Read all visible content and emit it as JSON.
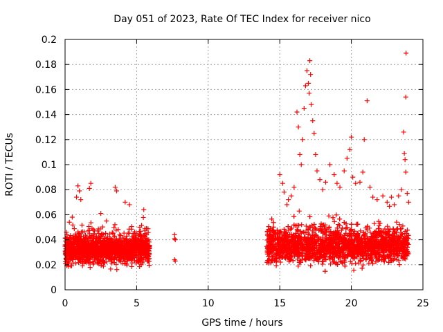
{
  "chart_data": {
    "type": "scatter",
    "title": "Day 051 of 2023, Rate Of TEC Index for receiver nico",
    "xlabel": "GPS time / hours",
    "ylabel": "ROTI / TECUs",
    "xlim": [
      0,
      25
    ],
    "ylim": [
      0,
      0.2
    ],
    "xticks": [
      0,
      5,
      10,
      15,
      20,
      25
    ],
    "yticks": [
      0,
      0.02,
      0.04,
      0.06,
      0.08,
      0.1,
      0.12,
      0.14,
      0.16,
      0.18,
      0.2
    ],
    "grid": true,
    "marker": "+",
    "series_color": "#ff0000",
    "segments": [
      {
        "x_start": 0.0,
        "x_end": 5.9,
        "baseline": 0.032,
        "spread": 0.018,
        "min": 0.008,
        "max": 0.066
      },
      {
        "x_start": 14.1,
        "x_end": 24.0,
        "baseline": 0.035,
        "spread": 0.022,
        "min": 0.006,
        "max": 0.07
      }
    ],
    "points": [
      [
        0.3,
        0.054
      ],
      [
        0.5,
        0.058
      ],
      [
        0.8,
        0.074
      ],
      [
        0.9,
        0.083
      ],
      [
        1.0,
        0.079
      ],
      [
        1.1,
        0.072
      ],
      [
        1.7,
        0.081
      ],
      [
        1.8,
        0.085
      ],
      [
        3.5,
        0.082
      ],
      [
        3.6,
        0.079
      ],
      [
        4.5,
        0.068
      ],
      [
        4.2,
        0.07
      ],
      [
        5.5,
        0.064
      ],
      [
        2.5,
        0.061
      ],
      [
        7.65,
        0.044
      ],
      [
        7.65,
        0.041
      ],
      [
        7.7,
        0.04
      ],
      [
        7.65,
        0.024
      ],
      [
        7.7,
        0.023
      ],
      [
        15.0,
        0.092
      ],
      [
        15.2,
        0.085
      ],
      [
        15.3,
        0.078
      ],
      [
        15.5,
        0.068
      ],
      [
        15.6,
        0.072
      ],
      [
        15.8,
        0.075
      ],
      [
        16.0,
        0.082
      ],
      [
        16.2,
        0.142
      ],
      [
        16.3,
        0.13
      ],
      [
        16.4,
        0.108
      ],
      [
        16.5,
        0.1
      ],
      [
        16.6,
        0.12
      ],
      [
        16.7,
        0.145
      ],
      [
        16.8,
        0.163
      ],
      [
        16.9,
        0.175
      ],
      [
        17.0,
        0.165
      ],
      [
        17.05,
        0.157
      ],
      [
        17.1,
        0.183
      ],
      [
        17.15,
        0.172
      ],
      [
        17.2,
        0.148
      ],
      [
        17.3,
        0.135
      ],
      [
        17.4,
        0.125
      ],
      [
        17.5,
        0.108
      ],
      [
        17.6,
        0.095
      ],
      [
        17.8,
        0.088
      ],
      [
        18.0,
        0.08
      ],
      [
        18.2,
        0.086
      ],
      [
        18.5,
        0.1
      ],
      [
        18.8,
        0.092
      ],
      [
        19.0,
        0.085
      ],
      [
        19.2,
        0.082
      ],
      [
        19.5,
        0.095
      ],
      [
        19.7,
        0.105
      ],
      [
        19.9,
        0.112
      ],
      [
        20.0,
        0.122
      ],
      [
        20.1,
        0.09
      ],
      [
        20.3,
        0.085
      ],
      [
        20.6,
        0.086
      ],
      [
        20.8,
        0.094
      ],
      [
        20.9,
        0.12
      ],
      [
        21.1,
        0.151
      ],
      [
        21.3,
        0.082
      ],
      [
        21.5,
        0.074
      ],
      [
        21.8,
        0.072
      ],
      [
        22.2,
        0.075
      ],
      [
        22.5,
        0.07
      ],
      [
        22.8,
        0.074
      ],
      [
        23.0,
        0.068
      ],
      [
        23.3,
        0.075
      ],
      [
        23.5,
        0.08
      ],
      [
        23.65,
        0.126
      ],
      [
        23.7,
        0.109
      ],
      [
        23.75,
        0.104
      ],
      [
        23.8,
        0.094
      ],
      [
        23.8,
        0.154
      ],
      [
        23.82,
        0.189
      ],
      [
        23.9,
        0.077
      ],
      [
        24.0,
        0.07
      ]
    ]
  }
}
